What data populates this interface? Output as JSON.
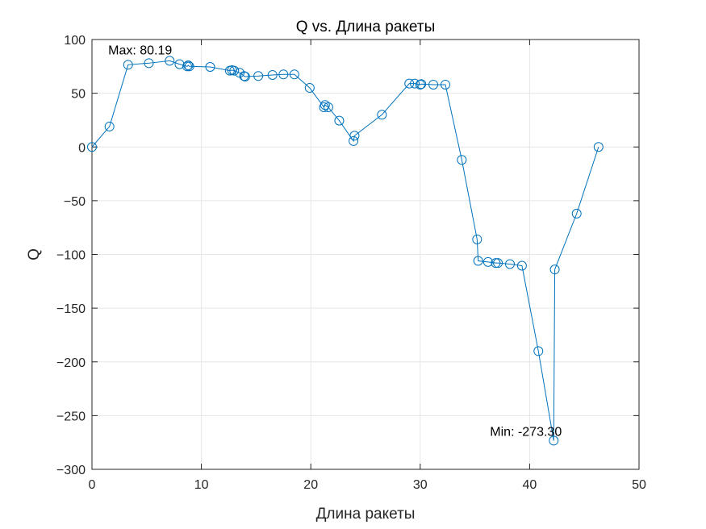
{
  "chart_data": {
    "type": "line",
    "title": "Q vs. Длина ракеты",
    "xlabel": "Длина ракеты",
    "ylabel": "Q",
    "xlim": [
      0,
      50
    ],
    "ylim": [
      -300,
      100
    ],
    "xticks": [
      0,
      10,
      20,
      30,
      40,
      50
    ],
    "yticks": [
      -300,
      -250,
      -200,
      -150,
      -100,
      -50,
      0,
      50,
      100
    ],
    "grid": true,
    "marker": "circle",
    "colors": {
      "series": "#0072BD",
      "grid": "#E6E6E6",
      "axes": "#262626"
    },
    "series": [
      {
        "x": [
          0,
          1.6,
          3.3,
          5.2,
          7.1,
          8.0,
          8.7,
          8.8,
          8.9,
          10.8,
          12.6,
          12.8,
          13.0,
          13.5,
          13.9,
          14.0,
          15.2,
          16.5,
          17.5,
          18.5,
          19.9,
          21.2,
          21.3,
          21.6,
          22.6,
          23.9,
          24.0,
          26.5,
          29.0,
          29.5,
          30.0,
          30.1,
          31.2,
          32.3,
          33.8,
          35.2,
          35.3,
          36.2,
          36.9,
          37.1,
          38.2,
          39.3,
          40.8,
          42.2,
          42.3,
          44.3,
          46.3
        ],
        "y": [
          0,
          19,
          76.5,
          78,
          80.19,
          77,
          75,
          76,
          75,
          74.5,
          71,
          71.5,
          71,
          69,
          66,
          65.5,
          66,
          67,
          67.5,
          67.5,
          55,
          37,
          39,
          37,
          24.5,
          5.5,
          10.5,
          30,
          59,
          59,
          58,
          58.5,
          58,
          58,
          -12,
          -86,
          -106,
          -107,
          -108,
          -108,
          -109,
          -110.5,
          -190,
          -273.3,
          -114,
          -62,
          0
        ]
      }
    ],
    "annotations": [
      {
        "text": "Max: 80.19",
        "x": 7.1,
        "y": 80.19
      },
      {
        "text": "Min: -273.30",
        "x": 42.2,
        "y": -273.3
      }
    ]
  }
}
